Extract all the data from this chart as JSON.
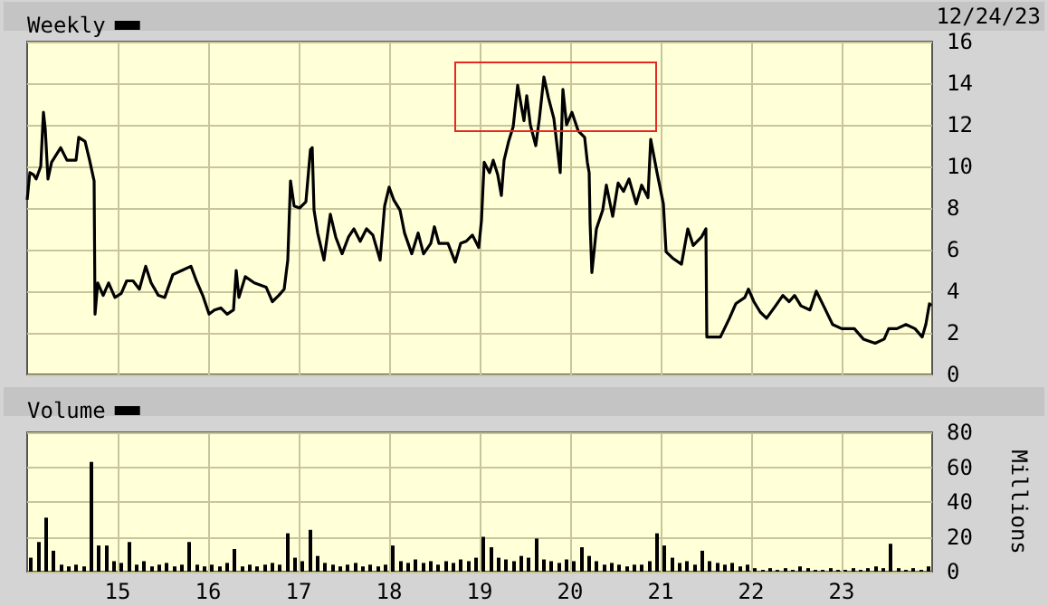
{
  "chart_data": [
    {
      "type": "line",
      "legend": "top left",
      "grid": true,
      "tick_labels": "y",
      "annotations": [
        "12/24/23"
      ],
      "series": [
        {
          "name": "Weekly",
          "color": "#000000",
          "x": [
            2014.0,
            2014.03,
            2014.07,
            2014.1,
            2014.15,
            2014.18,
            2014.2,
            2014.23,
            2014.27,
            2014.37,
            2014.44,
            2014.54,
            2014.57,
            2014.64,
            2014.69,
            2014.74,
            2014.75,
            2014.78,
            2014.84,
            2014.9,
            2014.97,
            2015.04,
            2015.1,
            2015.17,
            2015.24,
            2015.31,
            2015.37,
            2015.45,
            2015.52,
            2015.61,
            2015.71,
            2015.81,
            2015.87,
            2015.94,
            2016.01,
            2016.07,
            2016.14,
            2016.21,
            2016.28,
            2016.31,
            2016.34,
            2016.41,
            2016.51,
            2016.64,
            2016.71,
            2016.78,
            2016.84,
            2016.88,
            2016.91,
            2016.95,
            2017.01,
            2017.08,
            2017.13,
            2017.15,
            2017.17,
            2017.21,
            2017.28,
            2017.35,
            2017.41,
            2017.48,
            2017.55,
            2017.61,
            2017.68,
            2017.75,
            2017.82,
            2017.9,
            2017.95,
            2018.0,
            2018.05,
            2018.12,
            2018.17,
            2018.25,
            2018.32,
            2018.38,
            2018.46,
            2018.5,
            2018.55,
            2018.65,
            2018.73,
            2018.79,
            2018.85,
            2018.92,
            2018.99,
            2019.02,
            2019.05,
            2019.11,
            2019.15,
            2019.2,
            2019.24,
            2019.27,
            2019.32,
            2019.37,
            2019.42,
            2019.46,
            2019.49,
            2019.52,
            2019.56,
            2019.62,
            2019.66,
            2019.71,
            2019.76,
            2019.82,
            2019.89,
            2019.92,
            2019.96,
            2020.02,
            2020.09,
            2020.16,
            2020.19,
            2020.21,
            2020.22,
            2020.24,
            2020.29,
            2020.36,
            2020.4,
            2020.47,
            2020.53,
            2020.59,
            2020.65,
            2020.73,
            2020.79,
            2020.86,
            2020.89,
            2020.96,
            2021.03,
            2021.06,
            2021.13,
            2021.23,
            2021.3,
            2021.36,
            2021.45,
            2021.5,
            2021.51,
            2021.56,
            2021.66,
            2021.76,
            2021.83,
            2021.93,
            2021.97,
            2022.03,
            2022.1,
            2022.17,
            2022.27,
            2022.35,
            2022.42,
            2022.48,
            2022.55,
            2022.65,
            2022.72,
            2022.8,
            2022.9,
            2023.0,
            2023.14,
            2023.24,
            2023.37,
            2023.47,
            2023.52,
            2023.61,
            2023.71,
            2023.81,
            2023.89,
            2023.93,
            2023.97,
            2023.99
          ],
          "values": [
            8.4,
            9.7,
            9.6,
            9.4,
            10.0,
            12.6,
            11.8,
            9.4,
            10.2,
            10.9,
            10.3,
            10.3,
            11.4,
            11.2,
            10.3,
            9.3,
            2.9,
            4.4,
            3.8,
            4.4,
            3.7,
            3.9,
            4.5,
            4.5,
            4.1,
            5.2,
            4.4,
            3.8,
            3.7,
            4.8,
            5.0,
            5.2,
            4.5,
            3.8,
            2.9,
            3.1,
            3.2,
            2.9,
            3.1,
            5.0,
            3.7,
            4.7,
            4.4,
            4.2,
            3.5,
            3.8,
            4.1,
            5.5,
            9.3,
            8.1,
            8.0,
            8.3,
            10.8,
            10.9,
            7.9,
            6.8,
            5.5,
            7.7,
            6.6,
            5.8,
            6.6,
            7.0,
            6.4,
            7.0,
            6.7,
            5.5,
            8.1,
            9.0,
            8.4,
            7.9,
            6.8,
            5.8,
            6.8,
            5.8,
            6.3,
            7.1,
            6.3,
            6.3,
            5.4,
            6.3,
            6.4,
            6.7,
            6.1,
            7.4,
            10.2,
            9.7,
            10.3,
            9.6,
            8.6,
            10.3,
            11.2,
            11.9,
            13.9,
            12.9,
            12.2,
            13.4,
            12.0,
            11.0,
            12.3,
            14.3,
            13.3,
            12.3,
            9.7,
            13.7,
            12.0,
            12.6,
            11.7,
            11.4,
            10.2,
            9.7,
            7.3,
            4.9,
            7.0,
            7.9,
            9.1,
            7.6,
            9.2,
            8.8,
            9.4,
            8.2,
            9.1,
            8.5,
            11.3,
            9.7,
            8.2,
            5.9,
            5.6,
            5.3,
            7.0,
            6.2,
            6.6,
            7.0,
            1.8,
            1.8,
            1.8,
            2.7,
            3.4,
            3.7,
            4.1,
            3.5,
            3.0,
            2.7,
            3.3,
            3.8,
            3.5,
            3.8,
            3.3,
            3.1,
            4.0,
            3.3,
            2.4,
            2.2,
            2.2,
            1.7,
            1.5,
            1.7,
            2.2,
            2.2,
            2.4,
            2.2,
            1.8,
            2.4,
            3.4,
            3.3
          ]
        }
      ],
      "xlim": [
        2014,
        2024
      ],
      "xticks": [
        {
          "value": 2015,
          "label": null
        },
        {
          "value": 2016,
          "label": null
        },
        {
          "value": 2017,
          "label": null
        },
        {
          "value": 2018,
          "label": null
        },
        {
          "value": 2019,
          "label": null
        },
        {
          "value": 2020,
          "label": null
        },
        {
          "value": 2021,
          "label": null
        },
        {
          "value": 2022,
          "label": null
        },
        {
          "value": 2023,
          "label": null
        }
      ],
      "ylim": [
        0,
        16
      ],
      "yticks": [
        0,
        2,
        4,
        6,
        8,
        10,
        12,
        14,
        16
      ]
    },
    {
      "type": "bar",
      "legend": "top left",
      "grid": true,
      "ylabel": "Millions",
      "series": [
        {
          "name": "Volume",
          "color": "#000000",
          "x": [
            2014.04,
            2014.13,
            2014.21,
            2014.29,
            2014.38,
            2014.46,
            2014.54,
            2014.63,
            2014.71,
            2014.79,
            2014.88,
            2014.96,
            2015.04,
            2015.13,
            2015.21,
            2015.29,
            2015.38,
            2015.46,
            2015.54,
            2015.63,
            2015.71,
            2015.79,
            2015.88,
            2015.96,
            2016.04,
            2016.13,
            2016.21,
            2016.29,
            2016.38,
            2016.46,
            2016.54,
            2016.63,
            2016.71,
            2016.79,
            2016.88,
            2016.96,
            2017.04,
            2017.13,
            2017.21,
            2017.29,
            2017.38,
            2017.46,
            2017.54,
            2017.63,
            2017.71,
            2017.79,
            2017.88,
            2017.96,
            2018.04,
            2018.13,
            2018.21,
            2018.29,
            2018.38,
            2018.46,
            2018.54,
            2018.63,
            2018.71,
            2018.79,
            2018.88,
            2018.96,
            2019.04,
            2019.13,
            2019.21,
            2019.29,
            2019.38,
            2019.46,
            2019.54,
            2019.63,
            2019.71,
            2019.79,
            2019.88,
            2019.96,
            2020.04,
            2020.13,
            2020.21,
            2020.29,
            2020.38,
            2020.46,
            2020.54,
            2020.63,
            2020.71,
            2020.79,
            2020.88,
            2020.96,
            2021.04,
            2021.13,
            2021.21,
            2021.29,
            2021.38,
            2021.46,
            2021.54,
            2021.63,
            2021.71,
            2021.79,
            2021.88,
            2021.96,
            2022.04,
            2022.13,
            2022.21,
            2022.29,
            2022.38,
            2022.46,
            2022.54,
            2022.63,
            2022.71,
            2022.79,
            2022.88,
            2022.96,
            2023.04,
            2023.13,
            2023.21,
            2023.29,
            2023.38,
            2023.46,
            2023.54,
            2023.63,
            2023.71,
            2023.79,
            2023.88,
            2023.96
          ],
          "values": [
            8,
            17,
            31,
            12,
            4,
            3,
            4,
            3,
            63,
            15,
            15,
            6,
            5,
            17,
            4,
            6,
            3,
            4,
            5,
            3,
            4,
            17,
            4,
            3,
            4,
            3,
            5,
            13,
            3,
            4,
            3,
            4,
            5,
            4,
            22,
            8,
            6,
            24,
            9,
            5,
            4,
            3,
            4,
            5,
            3,
            4,
            3,
            4,
            15,
            6,
            5,
            7,
            5,
            6,
            4,
            6,
            5,
            7,
            6,
            8,
            20,
            14,
            8,
            7,
            6,
            9,
            8,
            19,
            7,
            6,
            5,
            7,
            6,
            14,
            9,
            6,
            4,
            5,
            4,
            3,
            4,
            4,
            6,
            22,
            15,
            8,
            5,
            6,
            4,
            12,
            6,
            5,
            4,
            5,
            3,
            4,
            2,
            1,
            2,
            1,
            2,
            1,
            3,
            2,
            1,
            1,
            2,
            1,
            1,
            2,
            1,
            2,
            3,
            2,
            16,
            2,
            1,
            2,
            1,
            3
          ]
        }
      ],
      "xlim": [
        2014,
        2024
      ],
      "xticks": [
        {
          "value": 2015,
          "label": "15"
        },
        {
          "value": 2016,
          "label": "16"
        },
        {
          "value": 2017,
          "label": "17"
        },
        {
          "value": 2018,
          "label": "18"
        },
        {
          "value": 2019,
          "label": "19"
        },
        {
          "value": 2020,
          "label": "20"
        },
        {
          "value": 2021,
          "label": "21"
        },
        {
          "value": 2022,
          "label": "22"
        },
        {
          "value": 2023,
          "label": "23"
        }
      ],
      "ylim": [
        0,
        80
      ],
      "yticks": [
        0,
        20,
        40,
        60,
        80
      ]
    }
  ]
}
